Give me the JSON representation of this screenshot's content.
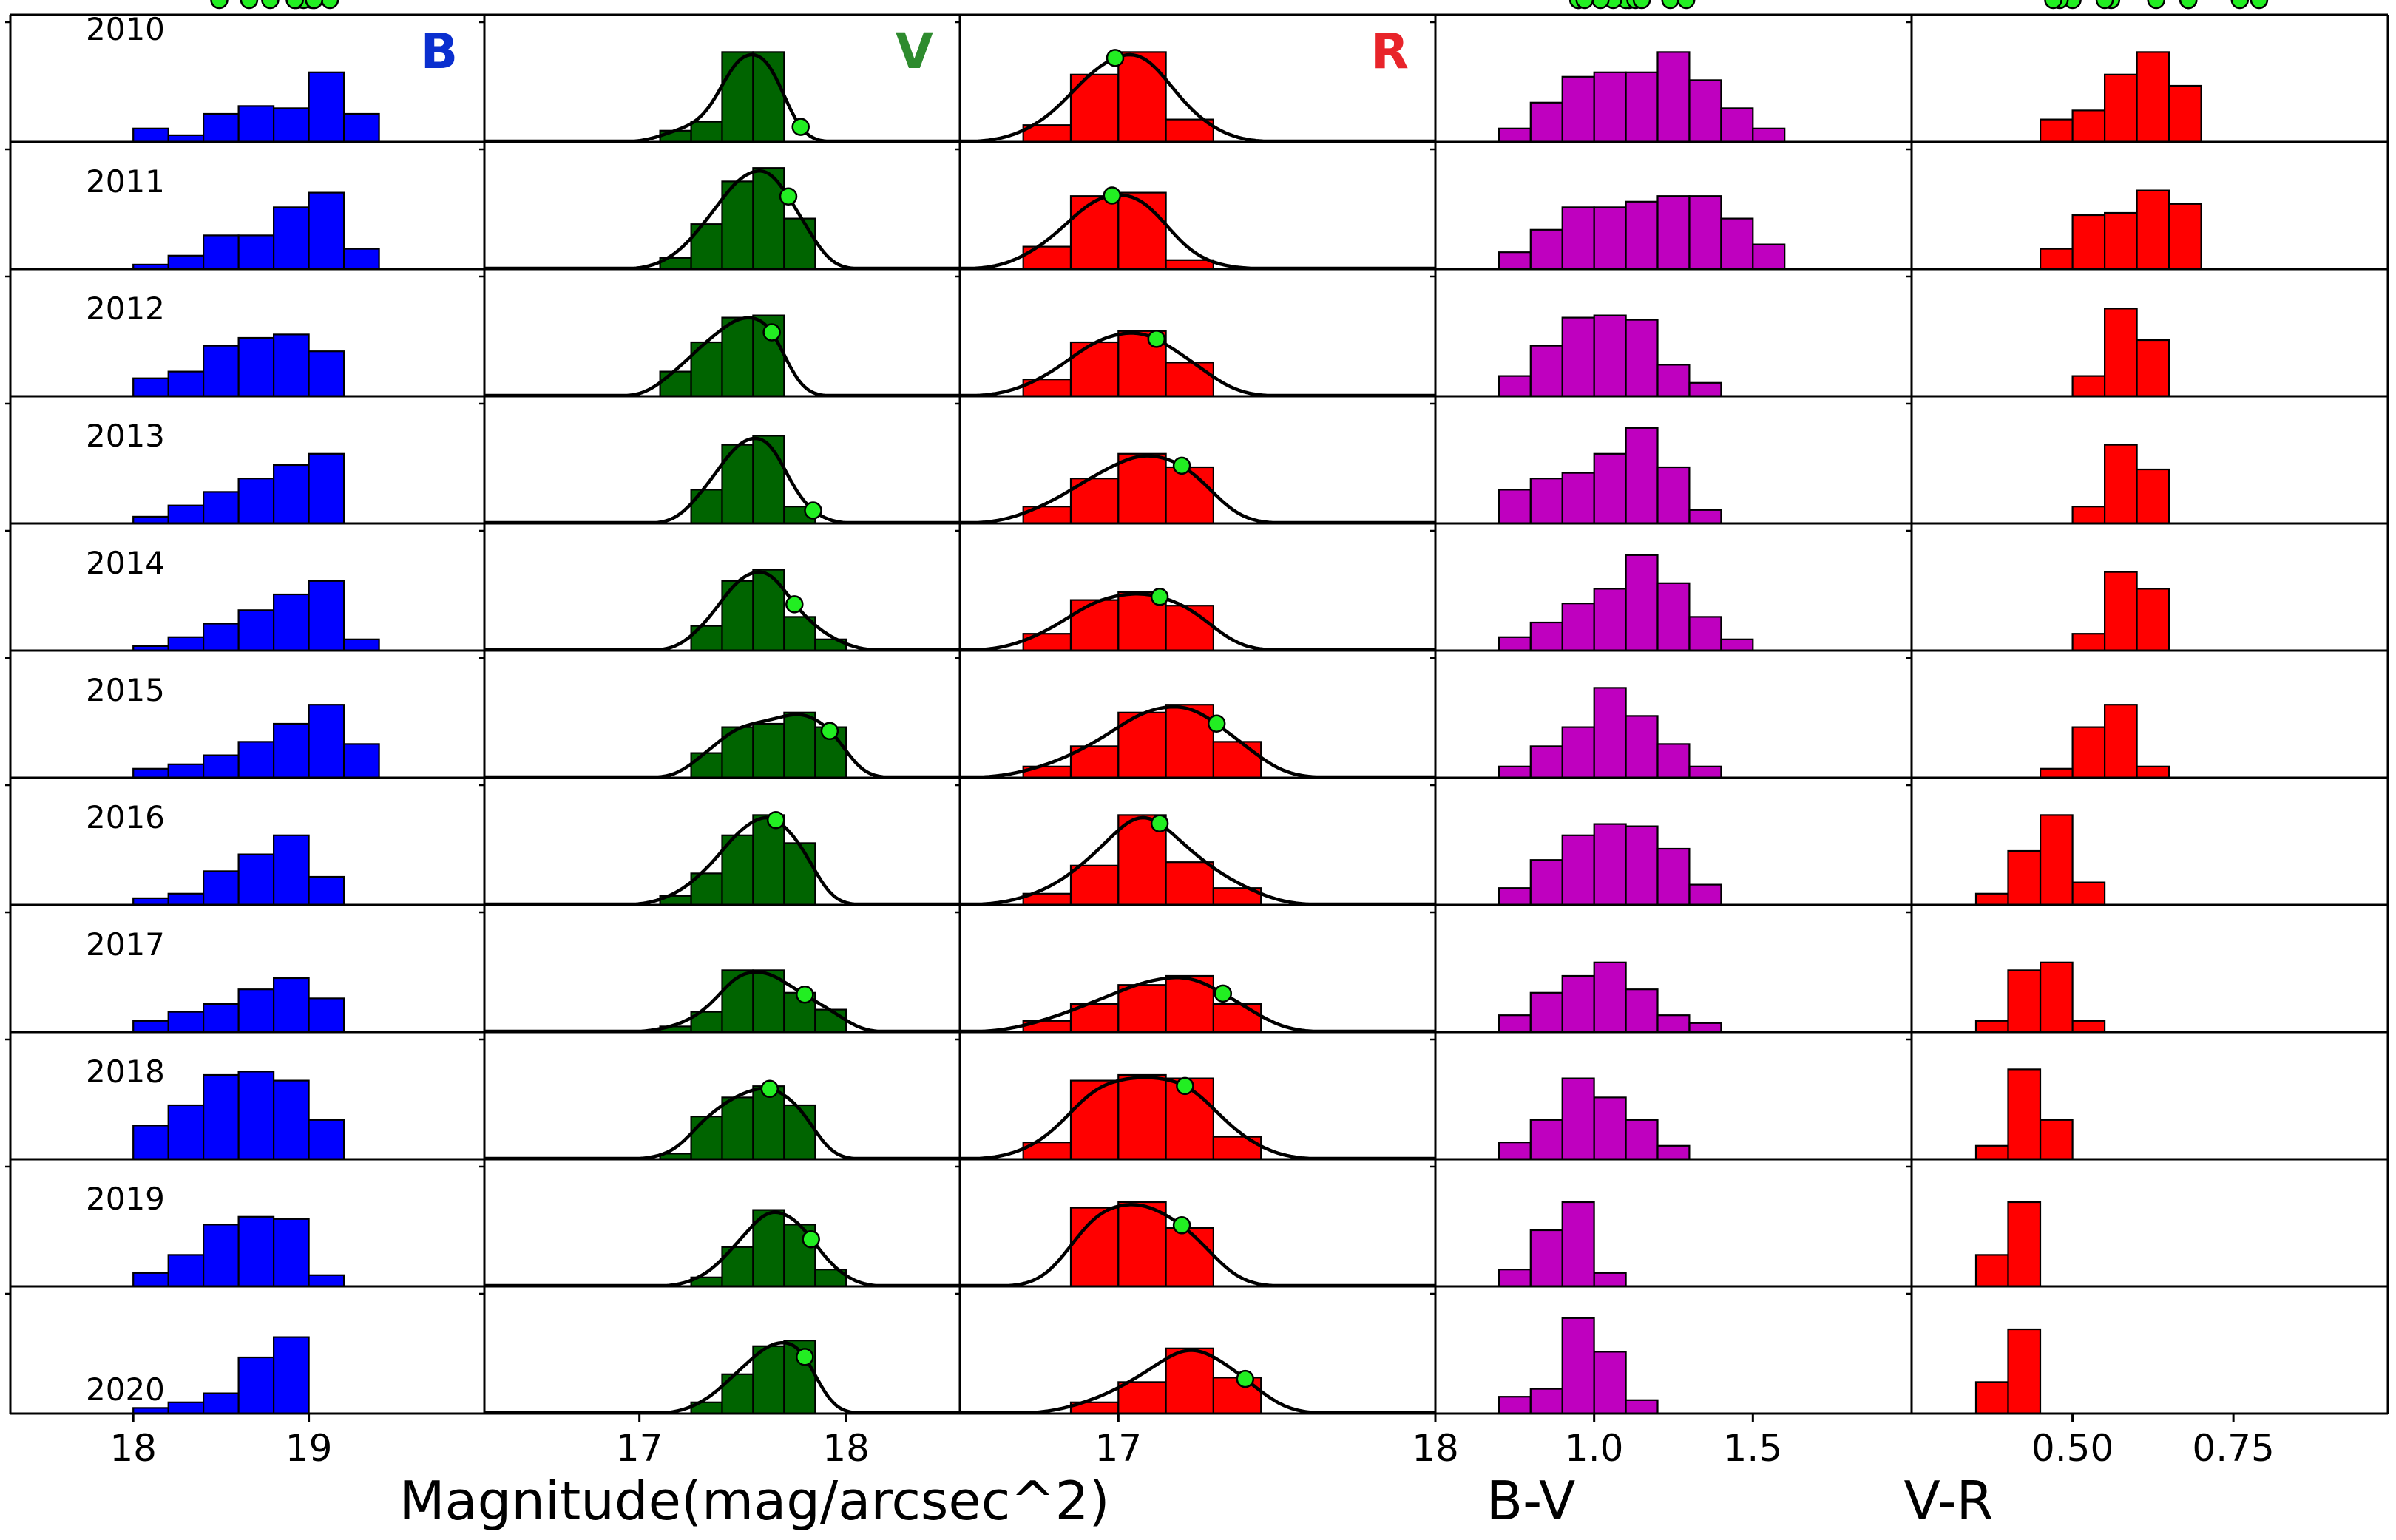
{
  "figure": {
    "xlabel_left": "Magnitude(mag/arcsec^2)",
    "xlabel_bv": "B-V",
    "xlabel_vr": "V-R",
    "years": [
      "2010",
      "2011",
      "2012",
      "2013",
      "2014",
      "2015",
      "2016",
      "2017",
      "2018",
      "2019",
      "2020"
    ],
    "colors": {
      "B": "#0000ff",
      "V": "#006400",
      "R": "#ff0000",
      "BV": "#bf00bf",
      "VR": "#ff0000",
      "marker": "#22ee22",
      "label_B": "#0a2fcf",
      "label_V": "#2e8b2e",
      "label_R": "#e8242a"
    }
  },
  "chart_data": [
    {
      "type": "bar",
      "panel": "B",
      "title": "B",
      "xlim": [
        17.3,
        20.0
      ],
      "ticks": [
        18,
        19
      ],
      "tick_labels": [
        "18",
        "19"
      ],
      "bin_edges": [
        17.6,
        17.8,
        18.0,
        18.2,
        18.4,
        18.6,
        18.8,
        19.0,
        19.2,
        19.4,
        19.6
      ],
      "series": [
        {
          "year": "2010",
          "counts": [
            0,
            0,
            0.12,
            0.06,
            0.25,
            0.32,
            0.3,
            0.62,
            0.25,
            0,
            0
          ],
          "peak": 19.12
        },
        {
          "year": "2011",
          "counts": [
            0,
            0,
            0.04,
            0.12,
            0.3,
            0.3,
            0.55,
            0.68,
            0.18,
            0,
            0
          ],
          "peak": 19.02
        },
        {
          "year": "2012",
          "counts": [
            0,
            0,
            0.16,
            0.22,
            0.45,
            0.52,
            0.55,
            0.4,
            0,
            0,
            0
          ],
          "peak": 18.93
        },
        {
          "year": "2013",
          "counts": [
            0,
            0,
            0.06,
            0.16,
            0.28,
            0.4,
            0.52,
            0.62,
            0,
            0,
            0
          ],
          "peak": 18.97
        },
        {
          "year": "2014",
          "counts": [
            0,
            0,
            0.04,
            0.12,
            0.24,
            0.36,
            0.5,
            0.62,
            0.1,
            0,
            0
          ],
          "peak": 19.03
        },
        {
          "year": "2015",
          "counts": [
            0,
            0,
            0.08,
            0.12,
            0.2,
            0.32,
            0.48,
            0.65,
            0.3,
            0,
            0
          ],
          "peak": 19.03
        },
        {
          "year": "2016",
          "counts": [
            0,
            0,
            0.06,
            0.1,
            0.3,
            0.45,
            0.62,
            0.25,
            0,
            0,
            0
          ],
          "peak": 18.92
        },
        {
          "year": "2017",
          "counts": [
            0,
            0,
            0.1,
            0.18,
            0.25,
            0.38,
            0.48,
            0.3,
            0,
            0,
            0
          ],
          "peak": 18.92
        },
        {
          "year": "2018",
          "counts": [
            0,
            0,
            0.3,
            0.48,
            0.75,
            0.78,
            0.7,
            0.35,
            0,
            0,
            0
          ],
          "peak": 18.49
        },
        {
          "year": "2019",
          "counts": [
            0,
            0,
            0.12,
            0.28,
            0.55,
            0.62,
            0.6,
            0.1,
            0,
            0,
            0
          ],
          "peak": 18.66
        },
        {
          "year": "2020",
          "counts": [
            0,
            0,
            0.05,
            0.1,
            0.18,
            0.5,
            0.68,
            0,
            0,
            0,
            0
          ],
          "peak": 18.78
        }
      ]
    },
    {
      "type": "bar",
      "panel": "V",
      "title": "V",
      "xlim": [
        16.25,
        18.55
      ],
      "ticks": [
        17,
        18
      ],
      "tick_labels": [
        "17",
        "18"
      ],
      "bin_edges": [
        16.95,
        17.1,
        17.25,
        17.4,
        17.55,
        17.7,
        17.85,
        18.0,
        18.15
      ],
      "series": [
        {
          "year": "2010",
          "counts": [
            0,
            0.1,
            0.18,
            0.8,
            0.8,
            0,
            0,
            0
          ],
          "peak": 17.78
        },
        {
          "year": "2011",
          "counts": [
            0,
            0.1,
            0.4,
            0.78,
            0.9,
            0.45,
            0,
            0
          ],
          "peak": 17.72
        },
        {
          "year": "2012",
          "counts": [
            0,
            0.22,
            0.48,
            0.7,
            0.72,
            0,
            0,
            0
          ],
          "peak": 17.64
        },
        {
          "year": "2013",
          "counts": [
            0,
            0,
            0.3,
            0.7,
            0.78,
            0.15,
            0,
            0
          ],
          "peak": 17.84
        },
        {
          "year": "2014",
          "counts": [
            0,
            0,
            0.22,
            0.62,
            0.72,
            0.3,
            0.1,
            0
          ],
          "peak": 17.75
        },
        {
          "year": "2015",
          "counts": [
            0,
            0,
            0.22,
            0.45,
            0.48,
            0.58,
            0.45,
            0
          ],
          "peak": 17.92
        },
        {
          "year": "2016",
          "counts": [
            0,
            0.08,
            0.28,
            0.62,
            0.8,
            0.55,
            0,
            0
          ],
          "peak": 17.66
        },
        {
          "year": "2017",
          "counts": [
            0,
            0.05,
            0.18,
            0.55,
            0.55,
            0.35,
            0.2,
            0
          ],
          "peak": 17.8
        },
        {
          "year": "2018",
          "counts": [
            0,
            0.05,
            0.38,
            0.55,
            0.65,
            0.48,
            0,
            0
          ],
          "peak": 17.63
        },
        {
          "year": "2019",
          "counts": [
            0,
            0,
            0.08,
            0.35,
            0.68,
            0.55,
            0.15,
            0
          ],
          "peak": 17.83
        },
        {
          "year": "2020",
          "counts": [
            0,
            0,
            0.1,
            0.35,
            0.6,
            0.65,
            0,
            0
          ],
          "peak": 17.8
        }
      ]
    },
    {
      "type": "bar",
      "panel": "R",
      "title": "R",
      "xlim": [
        16.5,
        18.0
      ],
      "ticks": [
        17,
        18
      ],
      "tick_labels": [
        "17",
        "18"
      ],
      "bin_edges": [
        16.7,
        16.85,
        17.0,
        17.15,
        17.3,
        17.45,
        17.6,
        17.75
      ],
      "series": [
        {
          "year": "2010",
          "counts": [
            0.15,
            0.6,
            0.8,
            0.2,
            0,
            0,
            0
          ],
          "peak": 16.99
        },
        {
          "year": "2011",
          "counts": [
            0.2,
            0.65,
            0.68,
            0.08,
            0,
            0,
            0
          ],
          "peak": 16.98
        },
        {
          "year": "2012",
          "counts": [
            0.15,
            0.48,
            0.58,
            0.3,
            0,
            0,
            0
          ],
          "peak": 17.12
        },
        {
          "year": "2013",
          "counts": [
            0.15,
            0.4,
            0.62,
            0.5,
            0,
            0,
            0
          ],
          "peak": 17.2
        },
        {
          "year": "2014",
          "counts": [
            0.15,
            0.45,
            0.52,
            0.4,
            0,
            0,
            0
          ],
          "peak": 17.13
        },
        {
          "year": "2015",
          "counts": [
            0.1,
            0.28,
            0.58,
            0.65,
            0.32,
            0,
            0
          ],
          "peak": 17.31
        },
        {
          "year": "2016",
          "counts": [
            0.1,
            0.35,
            0.8,
            0.38,
            0.15,
            0,
            0
          ],
          "peak": 17.13
        },
        {
          "year": "2017",
          "counts": [
            0.1,
            0.25,
            0.42,
            0.5,
            0.25,
            0,
            0
          ],
          "peak": 17.33
        },
        {
          "year": "2018",
          "counts": [
            0.15,
            0.7,
            0.75,
            0.72,
            0.2,
            0,
            0
          ],
          "peak": 17.21
        },
        {
          "year": "2019",
          "counts": [
            0,
            0.7,
            0.75,
            0.52,
            0,
            0,
            0
          ],
          "peak": 17.2
        },
        {
          "year": "2020",
          "counts": [
            0,
            0.1,
            0.28,
            0.58,
            0.32,
            0,
            0
          ],
          "peak": 17.4
        }
      ]
    },
    {
      "type": "bar",
      "panel": "B-V",
      "xlim": [
        0.5,
        2.0
      ],
      "ticks": [
        1.0,
        1.5
      ],
      "tick_labels": [
        "1.0",
        "1.5"
      ],
      "bin_edges": [
        0.7,
        0.8,
        0.9,
        1.0,
        1.1,
        1.2,
        1.3,
        1.4,
        1.5,
        1.6,
        1.7
      ],
      "series": [
        {
          "year": "2010",
          "counts": [
            0.12,
            0.35,
            0.58,
            0.62,
            0.62,
            0.8,
            0.55,
            0.3,
            0.12,
            0,
            0
          ],
          "peak": 1.24
        },
        {
          "year": "2011",
          "counts": [
            0.15,
            0.35,
            0.55,
            0.55,
            0.6,
            0.65,
            0.65,
            0.45,
            0.22,
            0,
            0
          ],
          "peak": 1.29
        },
        {
          "year": "2012",
          "counts": [
            0.18,
            0.45,
            0.7,
            0.72,
            0.68,
            0.28,
            0.12,
            0,
            0,
            0,
            0
          ],
          "peak": 1.11
        },
        {
          "year": "2013",
          "counts": [
            0.3,
            0.4,
            0.45,
            0.62,
            0.85,
            0.5,
            0.12,
            0,
            0,
            0,
            0
          ],
          "peak": 1.1
        },
        {
          "year": "2014",
          "counts": [
            0.12,
            0.25,
            0.42,
            0.55,
            0.85,
            0.6,
            0.3,
            0.1,
            0,
            0,
            0
          ],
          "peak": 1.13
        },
        {
          "year": "2015",
          "counts": [
            0.1,
            0.28,
            0.45,
            0.8,
            0.55,
            0.3,
            0.1,
            0,
            0,
            0,
            0
          ],
          "peak": 1.06
        },
        {
          "year": "2016",
          "counts": [
            0.15,
            0.4,
            0.62,
            0.72,
            0.7,
            0.5,
            0.18,
            0,
            0,
            0,
            0
          ],
          "peak": 1.15
        },
        {
          "year": "2017",
          "counts": [
            0.15,
            0.35,
            0.5,
            0.62,
            0.38,
            0.15,
            0.08,
            0,
            0,
            0,
            0
          ],
          "peak": 1.02
        },
        {
          "year": "2018",
          "counts": [
            0.15,
            0.35,
            0.72,
            0.55,
            0.35,
            0.12,
            0,
            0,
            0,
            0,
            0
          ],
          "peak": 0.95
        },
        {
          "year": "2019",
          "counts": [
            0.15,
            0.5,
            0.75,
            0.12,
            0,
            0,
            0,
            0,
            0,
            0,
            0
          ],
          "peak": 0.95
        },
        {
          "year": "2020",
          "counts": [
            0.15,
            0.22,
            0.85,
            0.55,
            0.12,
            0,
            0,
            0,
            0,
            0,
            0
          ],
          "peak": 0.97
        }
      ]
    },
    {
      "type": "bar",
      "panel": "V-R",
      "xlim": [
        0.25,
        0.99
      ],
      "ticks": [
        0.5,
        0.75
      ],
      "tick_labels": [
        "0.50",
        "0.75"
      ],
      "bin_edges": [
        0.35,
        0.4,
        0.45,
        0.5,
        0.55,
        0.6,
        0.65,
        0.7,
        0.75,
        0.8,
        0.85
      ],
      "series": [
        {
          "year": "2010",
          "counts": [
            0,
            0,
            0.2,
            0.28,
            0.6,
            0.8,
            0.5,
            0,
            0,
            0,
            0
          ],
          "peak": 0.76
        },
        {
          "year": "2011",
          "counts": [
            0,
            0,
            0.18,
            0.48,
            0.5,
            0.7,
            0.58,
            0,
            0,
            0,
            0
          ],
          "peak": 0.79
        },
        {
          "year": "2012",
          "counts": [
            0,
            0,
            0,
            0.18,
            0.78,
            0.5,
            0,
            0,
            0,
            0,
            0
          ],
          "peak": 0.68
        },
        {
          "year": "2013",
          "counts": [
            0,
            0,
            0,
            0.15,
            0.7,
            0.48,
            0,
            0,
            0,
            0,
            0
          ],
          "peak": 0.68
        },
        {
          "year": "2014",
          "counts": [
            0,
            0,
            0,
            0.15,
            0.7,
            0.55,
            0,
            0,
            0,
            0,
            0
          ],
          "peak": 0.68
        },
        {
          "year": "2015",
          "counts": [
            0,
            0,
            0.08,
            0.45,
            0.65,
            0.1,
            0,
            0,
            0,
            0,
            0
          ],
          "peak": 0.63
        },
        {
          "year": "2016",
          "counts": [
            0.1,
            0.48,
            0.8,
            0.2,
            0,
            0,
            0,
            0,
            0,
            0,
            0
          ],
          "peak": 0.56
        },
        {
          "year": "2017",
          "counts": [
            0.1,
            0.55,
            0.62,
            0.1,
            0,
            0,
            0,
            0,
            0,
            0,
            0
          ],
          "peak": 0.55
        },
        {
          "year": "2018",
          "counts": [
            0.12,
            0.8,
            0.35,
            0,
            0,
            0,
            0,
            0,
            0,
            0,
            0
          ],
          "peak": 0.5
        },
        {
          "year": "2019",
          "counts": [
            0.28,
            0.75,
            0,
            0,
            0,
            0,
            0,
            0,
            0,
            0,
            0
          ],
          "peak": 0.48
        },
        {
          "year": "2020",
          "counts": [
            0.28,
            0.75,
            0,
            0,
            0,
            0,
            0,
            0,
            0,
            0,
            0
          ],
          "peak": 0.47
        }
      ]
    }
  ]
}
